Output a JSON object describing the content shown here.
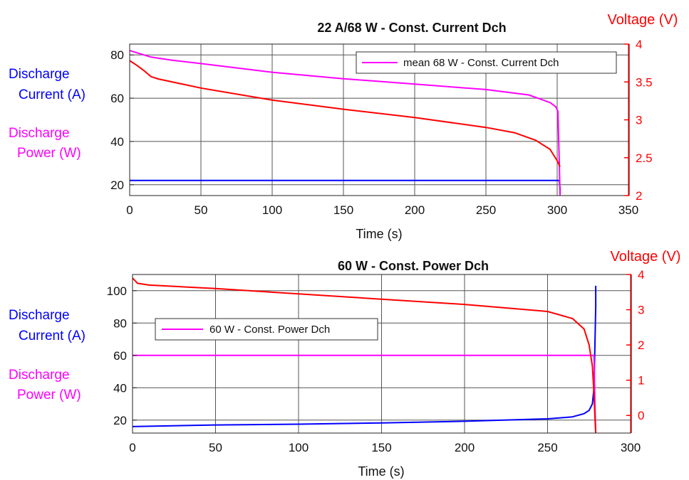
{
  "colors": {
    "current": "#0000ff",
    "power": "#ff00ff",
    "voltage": "#ff0000",
    "grid": "#555555",
    "axis": "#222222"
  },
  "chart_data": [
    {
      "type": "line",
      "title": "22 A/68 W - Const. Current Dch",
      "xlabel": "Time (s)",
      "ylabel_left_lines": [
        "Discharge",
        "Current (A)",
        "Discharge",
        "Power (W)"
      ],
      "ylabel_right": "Voltage (V)",
      "xlim": [
        0,
        350
      ],
      "ylim_left": [
        15,
        85
      ],
      "ylim_right": [
        2,
        4
      ],
      "xticks": [
        0,
        50,
        100,
        150,
        200,
        250,
        300,
        350
      ],
      "yticks_left": [
        20,
        40,
        60,
        80
      ],
      "yticks_right": [
        2,
        2.5,
        3,
        3.5,
        4
      ],
      "grid": true,
      "legend": {
        "position": "top-right",
        "entries": [
          {
            "label": "mean 68 W - Const. Current Dch",
            "series": "power"
          }
        ]
      },
      "series": [
        {
          "key": "current",
          "axis": "left",
          "x": [
            0,
            10,
            50,
            100,
            150,
            200,
            250,
            300,
            301.5,
            302,
            302
          ],
          "y": [
            22,
            22,
            22,
            22,
            22,
            22,
            22,
            22,
            22,
            18,
            15
          ]
        },
        {
          "key": "power",
          "axis": "left",
          "x": [
            0,
            5,
            15,
            30,
            50,
            100,
            150,
            200,
            250,
            280,
            295,
            299,
            300.5,
            301.5,
            302
          ],
          "y": [
            82,
            81,
            79,
            77.5,
            76,
            72,
            69,
            66.5,
            64,
            61.5,
            58,
            56,
            54,
            30,
            15
          ]
        },
        {
          "key": "voltage",
          "axis": "right",
          "x": [
            0,
            5,
            10,
            15,
            20,
            50,
            100,
            150,
            200,
            250,
            270,
            285,
            295,
            300,
            302
          ],
          "y": [
            3.78,
            3.72,
            3.65,
            3.57,
            3.54,
            3.42,
            3.26,
            3.14,
            3.03,
            2.9,
            2.83,
            2.73,
            2.61,
            2.46,
            2.38
          ]
        }
      ]
    },
    {
      "type": "line",
      "title": "60 W - Const. Power Dch",
      "xlabel": "Time (s)",
      "ylabel_left_lines": [
        "Discharge",
        "Current (A)",
        "Discharge",
        "Power (W)"
      ],
      "ylabel_right": "Voltage (V)",
      "xlim": [
        0,
        300
      ],
      "ylim_left": [
        12,
        110
      ],
      "ylim_right": [
        -0.5,
        4
      ],
      "xticks": [
        0,
        50,
        100,
        150,
        200,
        250,
        300
      ],
      "yticks_left": [
        20,
        40,
        60,
        80,
        100
      ],
      "yticks_right": [
        0,
        1,
        2,
        3,
        4
      ],
      "grid": true,
      "legend": {
        "position": "top-left",
        "entries": [
          {
            "label": "60 W - Const. Power Dch",
            "series": "power"
          }
        ]
      },
      "series": [
        {
          "key": "current",
          "axis": "left",
          "x": [
            0,
            50,
            100,
            150,
            200,
            250,
            265,
            272,
            275,
            277,
            278,
            278.5,
            279,
            279
          ],
          "y": [
            16,
            17,
            17.5,
            18.3,
            19.3,
            20.8,
            22,
            24,
            26,
            30,
            40,
            65,
            90,
            103
          ]
        },
        {
          "key": "power",
          "axis": "left",
          "x": [
            0,
            50,
            100,
            150,
            200,
            250,
            275,
            278,
            278.5,
            279
          ],
          "y": [
            60,
            60,
            60,
            60,
            60,
            60,
            60,
            60,
            30,
            12
          ]
        },
        {
          "key": "voltage",
          "axis": "right",
          "x": [
            0,
            3,
            10,
            50,
            100,
            150,
            200,
            250,
            265,
            272,
            275,
            277,
            278,
            278.5,
            279
          ],
          "y": [
            3.9,
            3.75,
            3.7,
            3.6,
            3.45,
            3.3,
            3.15,
            2.95,
            2.75,
            2.45,
            2.0,
            1.4,
            0.6,
            0.0,
            -0.5
          ]
        }
      ]
    }
  ]
}
